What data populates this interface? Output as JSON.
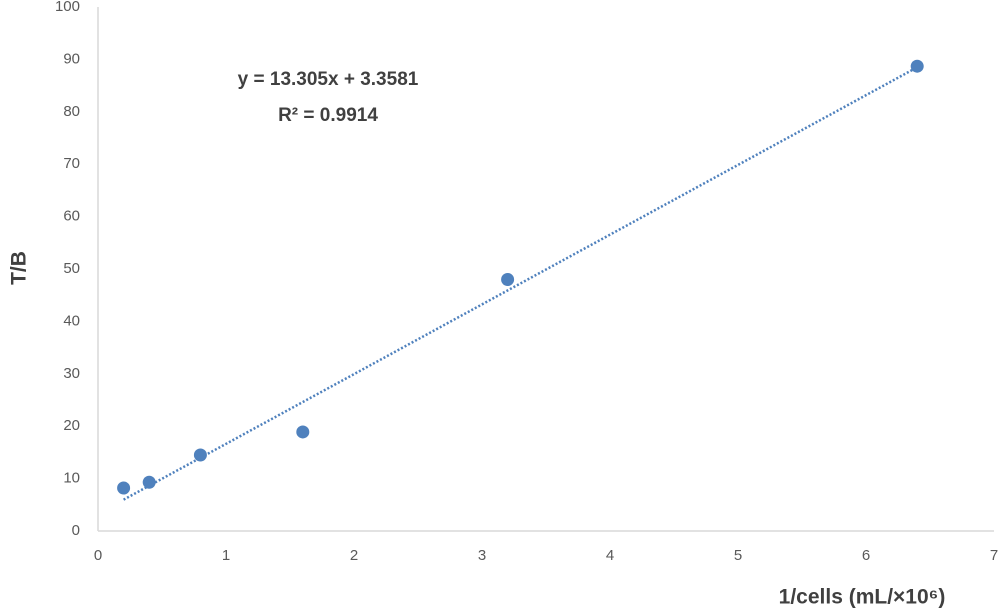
{
  "chart_data": {
    "type": "scatter",
    "x_label": "1/cells (mL/×10⁶)",
    "y_label": "T/B",
    "annotations": [
      "y = 13.305x + 3.3581",
      "R² = 0.9914"
    ],
    "trendline": "linear",
    "series": [
      {
        "color": "#4f81bd",
        "x": [
          0.2,
          0.4,
          0.8,
          1.6,
          3.2,
          6.4
        ],
        "values": [
          8.2,
          9.3,
          14.5,
          18.9,
          48,
          88.7
        ]
      }
    ],
    "xlim": [
      0,
      7
    ],
    "xticks": [
      0,
      1,
      2,
      3,
      4,
      5,
      6,
      7
    ],
    "ylim": [
      0,
      100
    ],
    "yticks": [
      0,
      10,
      20,
      30,
      40,
      50,
      60,
      70,
      80,
      90,
      100
    ],
    "grid": false
  }
}
